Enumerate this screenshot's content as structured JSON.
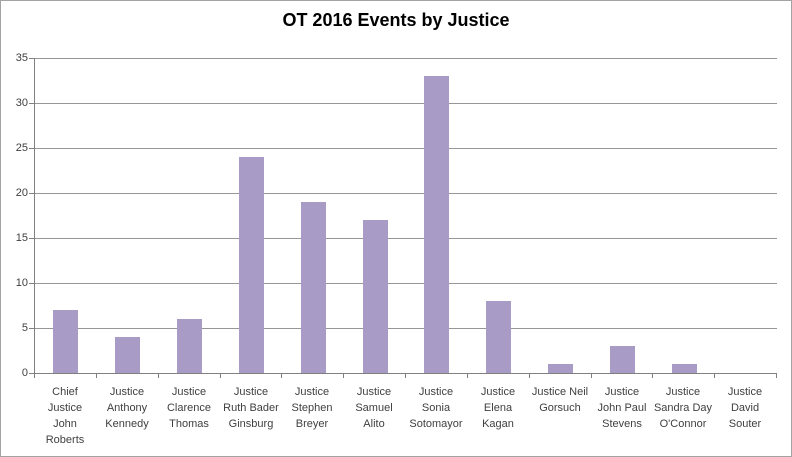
{
  "title": "OT 2016 Events by Justice",
  "colors": {
    "bar": "#A89CC6",
    "gridline": "#969696",
    "axis": "#808080",
    "tick_text": "#3F3F3F",
    "title_text": "#000000",
    "frame_border": "#A3A3A3",
    "background": "#FFFFFF"
  },
  "chart_data": {
    "type": "bar",
    "title": "OT 2016 Events by Justice",
    "categories": [
      "Chief Justice John Roberts",
      "Justice Anthony Kennedy",
      "Justice Clarence Thomas",
      "Justice Ruth Bader Ginsburg",
      "Justice Stephen Breyer",
      "Justice Samuel Alito",
      "Justice Sonia Sotomayor",
      "Justice Elena Kagan",
      "Justice Neil Gorsuch",
      "Justice John Paul Stevens",
      "Justice Sandra Day O'Connor",
      "Justice David Souter"
    ],
    "category_label_lines": [
      [
        "Chief",
        "Justice",
        "John",
        "Roberts"
      ],
      [
        "Justice",
        "Anthony",
        "Kennedy"
      ],
      [
        "Justice",
        "Clarence",
        "Thomas"
      ],
      [
        "Justice",
        "Ruth Bader",
        "Ginsburg"
      ],
      [
        "Justice",
        "Stephen",
        "Breyer"
      ],
      [
        "Justice",
        "Samuel",
        "Alito"
      ],
      [
        "Justice",
        "Sonia",
        "Sotomayor"
      ],
      [
        "Justice",
        "Elena",
        "Kagan"
      ],
      [
        "Justice Neil",
        "Gorsuch"
      ],
      [
        "Justice",
        "John Paul",
        "Stevens"
      ],
      [
        "Justice",
        "Sandra Day",
        "O'Connor"
      ],
      [
        "Justice",
        "David",
        "Souter"
      ]
    ],
    "values": [
      7,
      4,
      6,
      24,
      19,
      17,
      33,
      8,
      1,
      3,
      1,
      0
    ],
    "xlabel": "",
    "ylabel": "",
    "ylim": [
      0,
      35
    ],
    "yticks": [
      0,
      5,
      10,
      15,
      20,
      25,
      30,
      35
    ],
    "grid": true,
    "legend": "none",
    "bar_color": "#A89CC6"
  }
}
